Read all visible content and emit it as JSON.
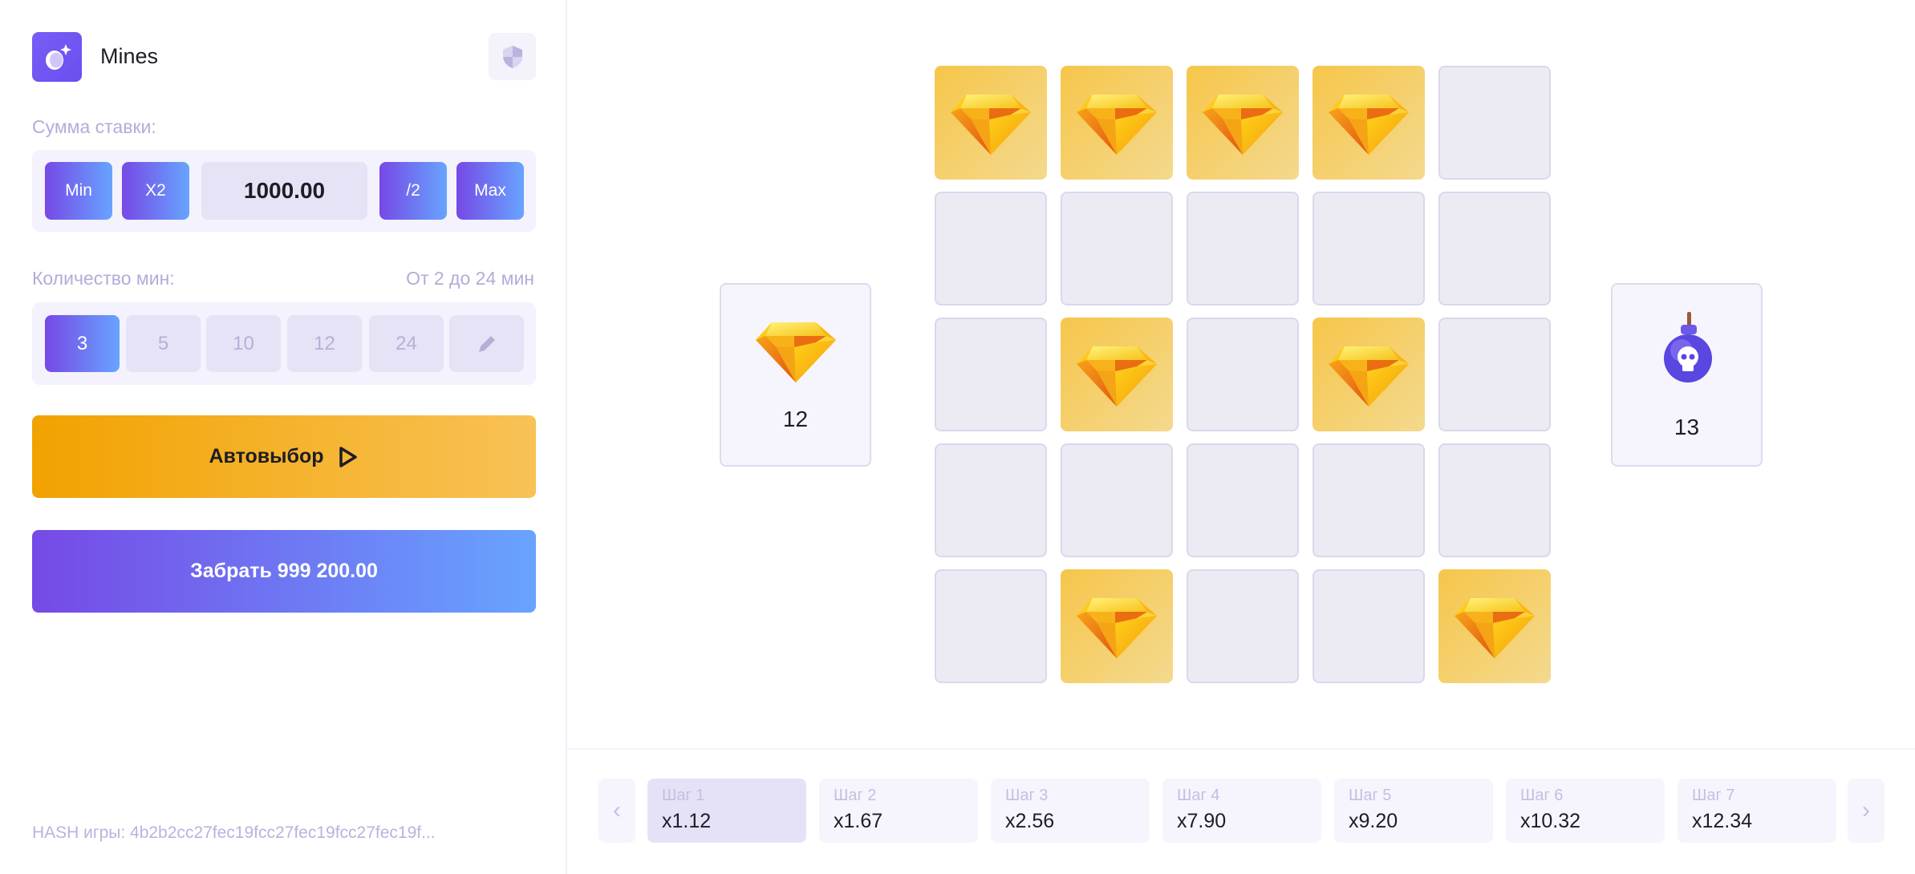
{
  "app": {
    "title": "Mines",
    "logo_icon": "bomb-icon",
    "fair_icon": "shield-icon"
  },
  "bet": {
    "label": "Сумма ставки:",
    "min_label": "Min",
    "x2_label": "X2",
    "amount": "1000.00",
    "half_label": "/2",
    "max_label": "Max"
  },
  "mines": {
    "label": "Количество мин:",
    "range": "От 2 до 24 мин",
    "options": [
      "3",
      "5",
      "10",
      "12",
      "24"
    ],
    "selected": "3",
    "edit_icon": "pencil-icon"
  },
  "autoselect": {
    "label": "Автовыбор",
    "icon": "play-icon"
  },
  "cashout": {
    "label": "Забрать 999 200.00"
  },
  "hash": "HASH игры: 4b2b2cc27fec19fcc27fec19fcc27fec19f...",
  "board": {
    "rows": [
      [
        "gem",
        "gem",
        "gem",
        "gem",
        "hidden"
      ],
      [
        "hidden",
        "hidden",
        "hidden",
        "hidden",
        "hidden"
      ],
      [
        "hidden",
        "gem",
        "hidden",
        "gem",
        "hidden"
      ],
      [
        "hidden",
        "hidden",
        "hidden",
        "hidden",
        "hidden"
      ],
      [
        "hidden",
        "gem",
        "hidden",
        "hidden",
        "gem"
      ]
    ],
    "gems_left": "12",
    "mines_count": "13"
  },
  "steps": [
    {
      "label": "Шаг 1",
      "mult": "x1.12",
      "active": true
    },
    {
      "label": "Шаг 2",
      "mult": "x1.67"
    },
    {
      "label": "Шаг 3",
      "mult": "x2.56"
    },
    {
      "label": "Шаг 4",
      "mult": "x7.90"
    },
    {
      "label": "Шаг 5",
      "mult": "x9.20"
    },
    {
      "label": "Шаг 6",
      "mult": "x10.32"
    },
    {
      "label": "Шаг 7",
      "mult": "x12.34"
    }
  ],
  "colors": {
    "accent_start": "#7649e6",
    "accent_end": "#67a4ff",
    "gold": "#f6c64a"
  }
}
